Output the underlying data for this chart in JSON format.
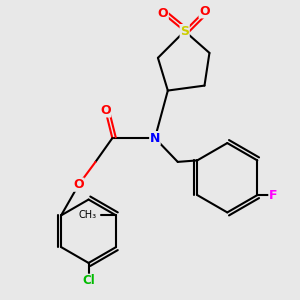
{
  "bg_color": "#e8e8e8",
  "line_color": "#000000",
  "atom_colors": {
    "S": "#cccc00",
    "O": "#ff0000",
    "N": "#0000ff",
    "F": "#ff00ff",
    "Cl": "#00bb00",
    "C": "#000000"
  },
  "fig_size": [
    3.0,
    3.0
  ],
  "dpi": 100
}
